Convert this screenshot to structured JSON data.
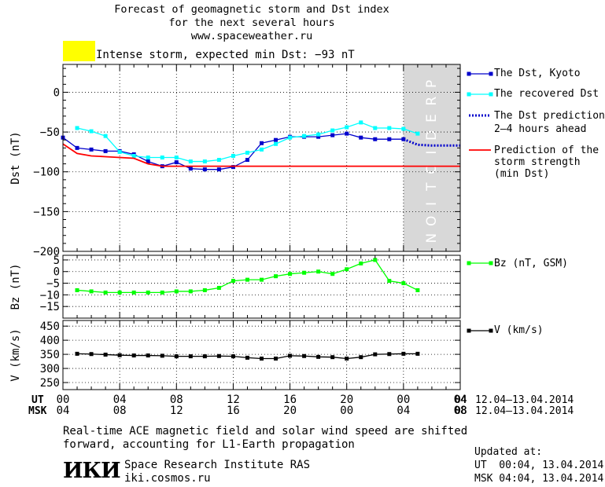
{
  "header": {
    "line1": "Forecast of geomagnetic storm and Dst index",
    "line2": "for the next several hours",
    "line3": "www.spaceweather.ru"
  },
  "alert": {
    "color": "#ffff00",
    "text": "Intense storm, expected min Dst: −93 nT"
  },
  "legend": {
    "kyoto": "The Dst, Kyoto",
    "recovered": "The recovered Dst",
    "pred1": "The Dst prediction",
    "pred2": "2–4 hours ahead",
    "strength1": "Prediction of the",
    "strength2": "storm strength",
    "strength3": "(min Dst)",
    "bz": "Bz (nT, GSM)",
    "v": "V (km/s)"
  },
  "bands": {
    "prediction_text": "PREDICTION"
  },
  "time_axis": {
    "ut_label": "UT",
    "msk_label": "MSK",
    "ut_ticks": [
      "00",
      "04",
      "08",
      "12",
      "16",
      "20",
      "00",
      "04"
    ],
    "msk_ticks": [
      "04",
      "08",
      "12",
      "16",
      "20",
      "00",
      "04",
      "08"
    ],
    "last_ut": "04",
    "last_msk": "08",
    "date_range_ut": "12.04–13.04.2014",
    "date_range_msk": "12.04–13.04.2014"
  },
  "footer": {
    "note1": "Real-time ACE magnetic field and solar wind speed are shifted",
    "note2": "forward, accounting for L1-Earth propagation",
    "logo_text": "ИКИ",
    "institute": "Space Research Institute RAS",
    "site": "iki.cosmos.ru",
    "updated_label": "Updated at:",
    "updated_ut": "UT  00:04, 13.04.2014",
    "updated_msk": "MSK 04:04, 13.04.2014"
  },
  "colors": {
    "kyoto": "#0000cc",
    "recovered": "#00ffff",
    "prediction": "#0000cc",
    "strength": "#ff0000",
    "bz": "#00ff00",
    "v": "#000000",
    "prediction_band": "#d8d8d8"
  },
  "chart_data": [
    {
      "type": "line",
      "ylabel": "Dst (nT)",
      "ylim": [
        -200,
        35
      ],
      "yticks": [
        "0",
        "−50",
        "−100",
        "−150",
        "−200"
      ],
      "ytick_values": [
        0,
        -50,
        -100,
        -150,
        -200
      ],
      "x_unit": "hours since 00 UT 12.04.2014",
      "xlim": [
        0,
        28
      ],
      "prediction_band": [
        24,
        28
      ],
      "series": [
        {
          "name": "The Dst, Kyoto",
          "marker": "square",
          "x": [
            0,
            1,
            2,
            3,
            4,
            5,
            6,
            7,
            8,
            9,
            10,
            11,
            12,
            13,
            14,
            15,
            16,
            17,
            18,
            19,
            20,
            21,
            22,
            23,
            24
          ],
          "y": [
            -57,
            -70,
            -72,
            -74,
            -74,
            -78,
            -87,
            -93,
            -88,
            -96,
            -97,
            -97,
            -94,
            -85,
            -64,
            -60,
            -56,
            -56,
            -56,
            -54,
            -52,
            -57,
            -59,
            -59,
            -59
          ]
        },
        {
          "name": "The recovered Dst",
          "marker": "square",
          "x": [
            1,
            2,
            3,
            4,
            5,
            6,
            7,
            8,
            9,
            10,
            11,
            12,
            13,
            14,
            15,
            16,
            17,
            18,
            19,
            20,
            21,
            22,
            23,
            24,
            25
          ],
          "y": [
            -45,
            -49,
            -55,
            -75,
            -80,
            -82,
            -82,
            -82,
            -87,
            -87,
            -85,
            -80,
            -76,
            -72,
            -65,
            -57,
            -55,
            -53,
            -48,
            -44,
            -38,
            -45,
            -45,
            -46,
            -52
          ]
        },
        {
          "name": "The Dst prediction 2–4 hours ahead",
          "style": "dotted",
          "x": [
            24,
            25,
            26,
            27,
            28
          ],
          "y": [
            -59,
            -66,
            -67,
            -67,
            -67
          ]
        },
        {
          "name": "Prediction of the storm strength (min Dst)",
          "style": "solid",
          "x": [
            0,
            1,
            2,
            3,
            4,
            5,
            6,
            7,
            8,
            9,
            10,
            11,
            12,
            13,
            14,
            28
          ],
          "y": [
            -65,
            -77,
            -80,
            -81,
            -82,
            -83,
            -90,
            -93,
            -93,
            -93,
            -93,
            -93,
            -93,
            -93,
            -93,
            -93
          ]
        }
      ]
    },
    {
      "type": "line",
      "ylabel": "Bz (nT)",
      "ylim": [
        -20,
        7
      ],
      "yticks": [
        "5",
        "0",
        "−5",
        "−10",
        "−15"
      ],
      "ytick_values": [
        5,
        0,
        -5,
        -10,
        -15
      ],
      "x_unit": "hours since 00 UT 12.04.2014",
      "xlim": [
        0,
        28
      ],
      "series": [
        {
          "name": "Bz (nT, GSM)",
          "marker": "square",
          "x": [
            1,
            2,
            3,
            4,
            5,
            6,
            7,
            8,
            9,
            10,
            11,
            12,
            13,
            14,
            15,
            16,
            17,
            18,
            19,
            20,
            21,
            22,
            23,
            24,
            25
          ],
          "y": [
            -8,
            -8.5,
            -9,
            -9,
            -9,
            -9,
            -9,
            -8.5,
            -8.5,
            -8,
            -7,
            -4,
            -3.5,
            -3.5,
            -2,
            -1,
            -0.5,
            0,
            -1,
            1,
            3.5,
            5,
            -4,
            -5,
            -8
          ]
        }
      ]
    },
    {
      "type": "line",
      "ylabel": "V (km/s)",
      "ylim": [
        225,
        470
      ],
      "yticks": [
        "450",
        "400",
        "350",
        "300",
        "250"
      ],
      "ytick_values": [
        450,
        400,
        350,
        300,
        250
      ],
      "x_unit": "hours since 00 UT 12.04.2014",
      "xlim": [
        0,
        28
      ],
      "series": [
        {
          "name": "V (km/s)",
          "marker": "square",
          "x": [
            1,
            2,
            3,
            4,
            5,
            6,
            7,
            8,
            9,
            10,
            11,
            12,
            13,
            14,
            15,
            16,
            17,
            18,
            19,
            20,
            21,
            22,
            23,
            24,
            25
          ],
          "y": [
            352,
            351,
            349,
            347,
            346,
            346,
            345,
            343,
            343,
            343,
            344,
            343,
            338,
            335,
            335,
            345,
            344,
            341,
            340,
            335,
            340,
            350,
            351,
            352,
            352
          ]
        }
      ]
    }
  ]
}
